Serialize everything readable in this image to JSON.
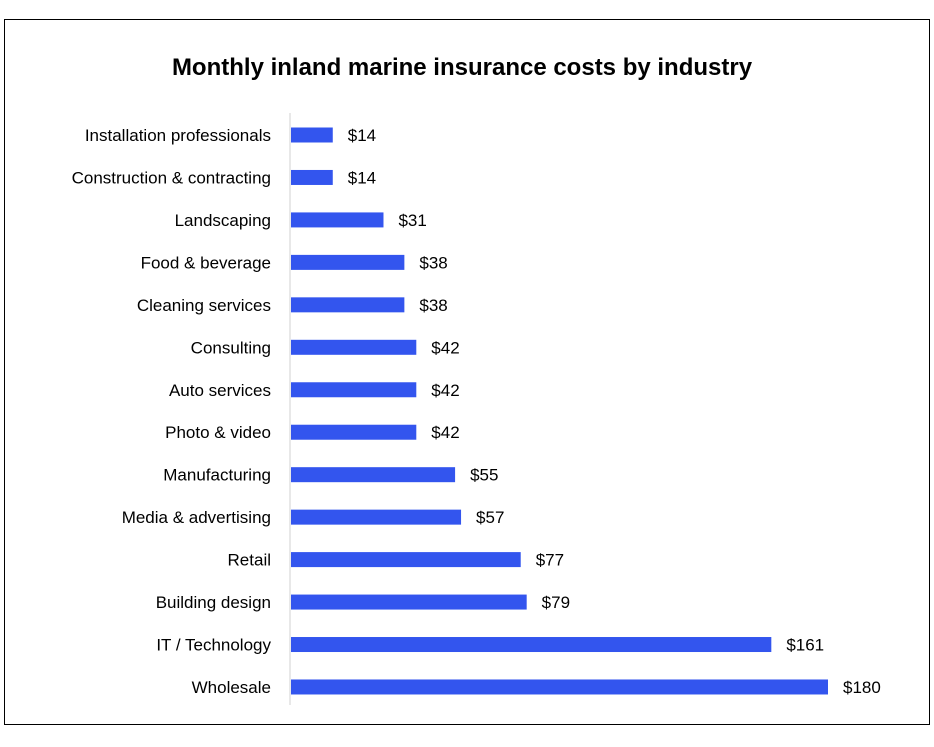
{
  "chart_data": {
    "type": "bar",
    "orientation": "horizontal",
    "title": "Monthly inland marine insurance costs by industry",
    "categories": [
      "Installation professionals",
      "Construction & contracting",
      "Landscaping",
      "Food & beverage",
      "Cleaning services",
      "Consulting",
      "Auto services",
      "Photo & video",
      "Manufacturing",
      "Media & advertising",
      "Retail",
      "Building design",
      "IT / Technology",
      "Wholesale"
    ],
    "values": [
      14,
      14,
      31,
      38,
      38,
      42,
      42,
      42,
      55,
      57,
      77,
      79,
      161,
      180
    ],
    "value_labels": [
      "$14",
      "$14",
      "$31",
      "$38",
      "$38",
      "$42",
      "$42",
      "$42",
      "$55",
      "$57",
      "$77",
      "$79",
      "$161",
      "$180"
    ],
    "xlim": [
      0,
      180
    ],
    "xlabel": "",
    "ylabel": "",
    "grid": false,
    "legend": "none",
    "bar_color": "#3355EE"
  }
}
